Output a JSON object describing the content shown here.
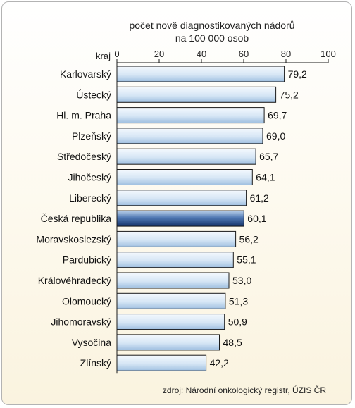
{
  "chart_data": {
    "type": "bar",
    "orientation": "horizontal",
    "title_lines": [
      "počet nově diagnostikovaných nádorů",
      "na 100 000 osob"
    ],
    "category_axis_label": "kraj",
    "xlim": [
      0,
      100
    ],
    "ticks": [
      0,
      20,
      40,
      60,
      80,
      100
    ],
    "tick_labels": [
      "0",
      "20",
      "40",
      "60",
      "80",
      "100"
    ],
    "grid": false,
    "categories": [
      "Karlovarský",
      "Ústecký",
      "Hl. m. Praha",
      "Plzeňský",
      "Středočeský",
      "Jihočeský",
      "Liberecký",
      "Česká republika",
      "Moravskoslezský",
      "Pardubický",
      "Královéhradecký",
      "Olomoucký",
      "Jihomoravský",
      "Vysočina",
      "Zlínský"
    ],
    "values": [
      79.2,
      75.2,
      69.7,
      69.0,
      65.7,
      64.1,
      61.2,
      60.1,
      56.2,
      55.1,
      53.0,
      51.3,
      50.9,
      48.5,
      42.2
    ],
    "value_labels": [
      "79,2",
      "75,2",
      "69,7",
      "69,0",
      "65,7",
      "64,1",
      "61,2",
      "60,1",
      "56,2",
      "55,1",
      "53,0",
      "51,3",
      "50,9",
      "48,5",
      "42,2"
    ],
    "highlight_category": "Česká republika",
    "colors": {
      "bar_light": "#dbeaf7",
      "bar_mid": "#a9c6e4",
      "bar_highlight_dark": "#1d3f7a",
      "bar_highlight_light": "#8fb3dc",
      "bar_stroke": "#1a1a1a",
      "axis": "#1a1a1a"
    }
  },
  "source_note": "zdroj: Národní onkologický registr, ÚZIS ČR"
}
